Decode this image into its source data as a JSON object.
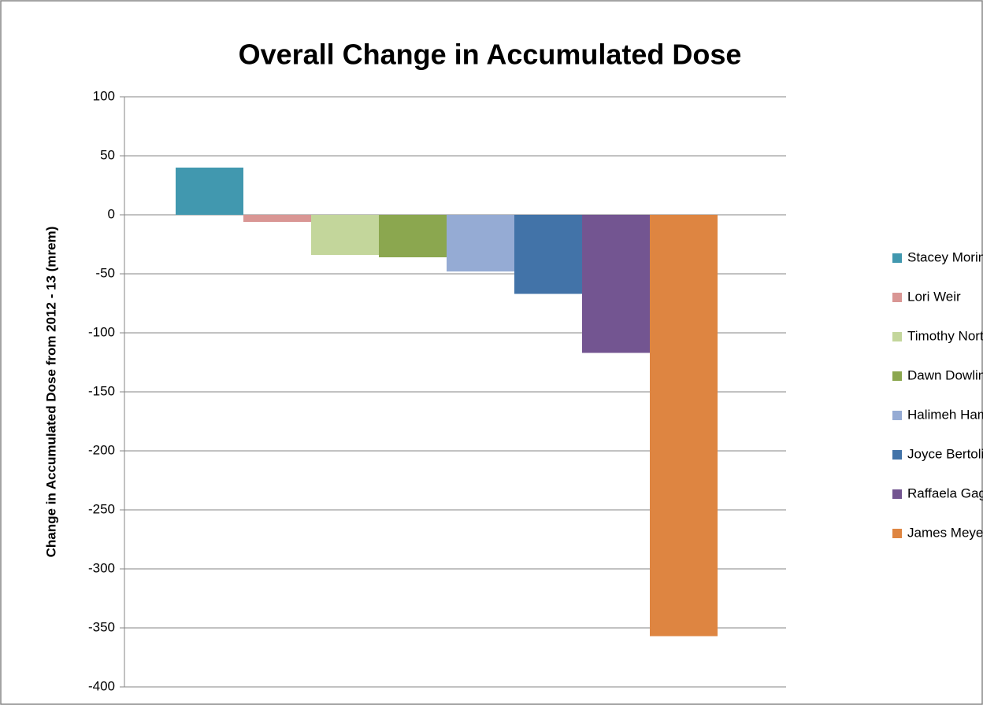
{
  "chart_data": {
    "type": "bar",
    "title": "Overall Change in Accumulated Dose",
    "y_label": "Change in Accumulated Dose from 2012 - 13 (mrem)",
    "series": [
      {
        "name": "Stacey Morin",
        "color": "#4198af",
        "values": [
          40
        ]
      },
      {
        "name": "Lori Weir",
        "color": "#d99694",
        "values": [
          -6
        ]
      },
      {
        "name": "Timothy Norton",
        "color": "#c3d69b",
        "values": [
          -34
        ]
      },
      {
        "name": "Dawn Dowling",
        "color": "#8ba74f",
        "values": [
          -36
        ]
      },
      {
        "name": "Halimeh Hamdi",
        "color": "#95abd4",
        "values": [
          -48
        ]
      },
      {
        "name": "Joyce Bertolino",
        "color": "#4273a8",
        "values": [
          -67
        ]
      },
      {
        "name": "Raffaela Gaglione",
        "color": "#735591",
        "values": [
          -117
        ]
      },
      {
        "name": "James Meyer",
        "color": "#de8541",
        "values": [
          -357
        ]
      }
    ],
    "ylim": [
      -400,
      100
    ],
    "yticks": [
      100,
      50,
      0,
      -50,
      -100,
      -150,
      -200,
      -250,
      -300,
      -350,
      -400
    ],
    "grid": true,
    "legend": "right"
  }
}
